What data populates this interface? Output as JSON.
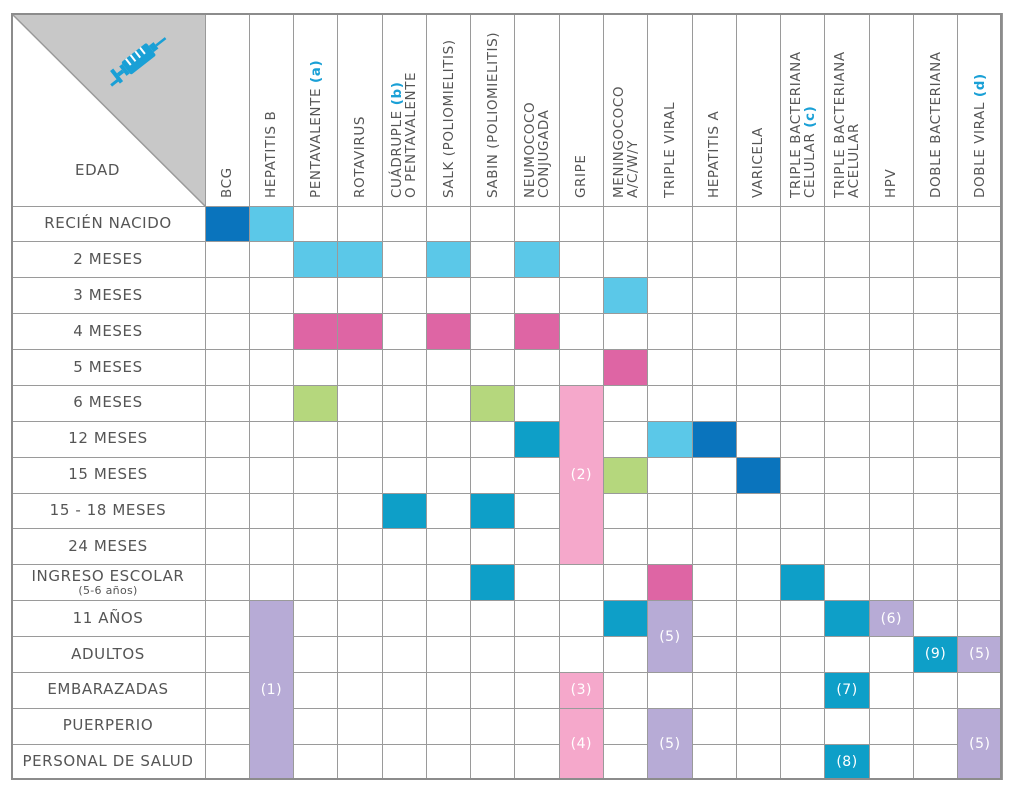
{
  "corner": {
    "label": "EDAD",
    "icon": "syringe-icon",
    "accent": "#1aa0d6"
  },
  "colors": {
    "dark_blue": "#0a74bd",
    "light_blue": "#5bc8e8",
    "teal": "#0e9fc8",
    "magenta": "#de65a4",
    "pink": "#f5a8cb",
    "green": "#b5d77d",
    "lavender": "#b7abd6"
  },
  "columns": [
    {
      "name": "BCG"
    },
    {
      "name": "HEPATITIS B"
    },
    {
      "name": "PENTAVALENTE",
      "tag": "(a)"
    },
    {
      "name": "ROTAVIRUS"
    },
    {
      "name": "CUÁDRUPLE",
      "tag": "(b)",
      "name2": "O PENTAVALENTE"
    },
    {
      "name": "SALK (POLIOMIELITIS)"
    },
    {
      "name": "SABIN (POLIOMIELITIS)"
    },
    {
      "name": "NEUMOCOCO",
      "name2": "CONJUGADA"
    },
    {
      "name": "GRIPE"
    },
    {
      "name": "MENINGOCOCO",
      "name2": "A/C/W/Y"
    },
    {
      "name": "TRIPLE VIRAL"
    },
    {
      "name": "HEPATITIS A"
    },
    {
      "name": "VARICELA"
    },
    {
      "name": "TRIPLE BACTERIANA",
      "name2": "CELULAR",
      "tag2": "(c)"
    },
    {
      "name": "TRIPLE BACTERIANA",
      "name2": "ACELULAR"
    },
    {
      "name": "HPV"
    },
    {
      "name": "DOBLE BACTERIANA"
    },
    {
      "name": "DOBLE VIRAL",
      "tag": "(d)"
    }
  ],
  "rows": [
    {
      "label": "RECIÉN NACIDO"
    },
    {
      "label": "2 MESES"
    },
    {
      "label": "3 MESES"
    },
    {
      "label": "4 MESES"
    },
    {
      "label": "5 MESES"
    },
    {
      "label": "6 MESES"
    },
    {
      "label": "12 MESES"
    },
    {
      "label": "15 MESES"
    },
    {
      "label": "15 - 18 MESES"
    },
    {
      "label": "24 MESES"
    },
    {
      "label": "INGRESO ESCOLAR",
      "sub": "(5-6 años)"
    },
    {
      "label": "11 AÑOS"
    },
    {
      "label": "ADULTOS"
    },
    {
      "label": "EMBARAZADAS"
    },
    {
      "label": "PUERPERIO"
    },
    {
      "label": "PERSONAL DE SALUD"
    }
  ],
  "doses": [
    {
      "row": 0,
      "col": 0,
      "color": "dark_blue"
    },
    {
      "row": 0,
      "col": 1,
      "color": "light_blue"
    },
    {
      "row": 1,
      "col": 2,
      "color": "light_blue"
    },
    {
      "row": 1,
      "col": 3,
      "color": "light_blue"
    },
    {
      "row": 1,
      "col": 5,
      "color": "light_blue"
    },
    {
      "row": 1,
      "col": 7,
      "color": "light_blue"
    },
    {
      "row": 2,
      "col": 9,
      "color": "light_blue"
    },
    {
      "row": 3,
      "col": 2,
      "color": "magenta"
    },
    {
      "row": 3,
      "col": 3,
      "color": "magenta"
    },
    {
      "row": 3,
      "col": 5,
      "color": "magenta"
    },
    {
      "row": 3,
      "col": 7,
      "color": "magenta"
    },
    {
      "row": 4,
      "col": 9,
      "color": "magenta"
    },
    {
      "row": 5,
      "col": 2,
      "color": "green"
    },
    {
      "row": 5,
      "col": 6,
      "color": "green"
    },
    {
      "row": 5,
      "col": 8,
      "rowspan": 5,
      "color": "pink",
      "text": "(2)"
    },
    {
      "row": 6,
      "col": 7,
      "color": "teal"
    },
    {
      "row": 6,
      "col": 10,
      "color": "light_blue"
    },
    {
      "row": 6,
      "col": 11,
      "color": "dark_blue"
    },
    {
      "row": 7,
      "col": 9,
      "color": "green"
    },
    {
      "row": 7,
      "col": 12,
      "color": "dark_blue"
    },
    {
      "row": 8,
      "col": 4,
      "color": "teal"
    },
    {
      "row": 8,
      "col": 6,
      "color": "teal"
    },
    {
      "row": 10,
      "col": 6,
      "color": "teal"
    },
    {
      "row": 10,
      "col": 10,
      "color": "magenta"
    },
    {
      "row": 10,
      "col": 13,
      "color": "teal"
    },
    {
      "row": 11,
      "col": 1,
      "rowspan": 5,
      "color": "lavender",
      "text": "(1)"
    },
    {
      "row": 11,
      "col": 9,
      "color": "teal"
    },
    {
      "row": 11,
      "col": 10,
      "rowspan": 2,
      "color": "lavender",
      "text": "(5)"
    },
    {
      "row": 11,
      "col": 14,
      "color": "teal"
    },
    {
      "row": 11,
      "col": 15,
      "color": "lavender",
      "text": "(6)"
    },
    {
      "row": 12,
      "col": 16,
      "color": "teal",
      "text": "(9)"
    },
    {
      "row": 12,
      "col": 17,
      "color": "lavender",
      "text": "(5)"
    },
    {
      "row": 13,
      "col": 8,
      "color": "pink",
      "text": "(3)"
    },
    {
      "row": 13,
      "col": 14,
      "color": "teal",
      "text": "(7)"
    },
    {
      "row": 14,
      "col": 8,
      "rowspan": 2,
      "color": "pink",
      "text": "(4)"
    },
    {
      "row": 14,
      "col": 10,
      "rowspan": 2,
      "color": "lavender",
      "text": "(5)"
    },
    {
      "row": 14,
      "col": 17,
      "rowspan": 2,
      "color": "lavender",
      "text": "(5)"
    },
    {
      "row": 15,
      "col": 14,
      "color": "teal",
      "text": "(8)"
    }
  ]
}
